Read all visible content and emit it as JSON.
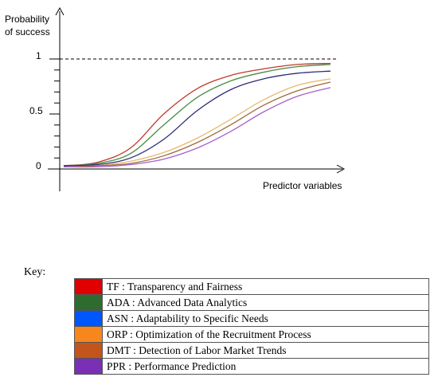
{
  "chart_data": {
    "type": "line",
    "ylabel_lines": [
      "Probability",
      "of success"
    ],
    "xlabel": "Predictor variables",
    "y_ticks": [
      {
        "value": 0,
        "label": "0"
      },
      {
        "value": 0.5,
        "label": "0.5"
      },
      {
        "value": 1,
        "label": "1"
      }
    ],
    "ylim": [
      0,
      1
    ],
    "reference_line": {
      "y": 1,
      "style": "dashed"
    },
    "series": [
      {
        "name": "TF",
        "color": "#c0392b",
        "x": [
          0,
          0.5,
          1.0,
          1.5,
          2.0,
          2.5,
          3.0,
          3.5,
          4.0
        ],
        "y": [
          0.03,
          0.06,
          0.19,
          0.5,
          0.73,
          0.85,
          0.91,
          0.95,
          0.96
        ]
      },
      {
        "name": "ADA",
        "color": "#4a8a45",
        "x": [
          0,
          0.5,
          1.0,
          1.5,
          2.0,
          2.5,
          3.0,
          3.5,
          4.0
        ],
        "y": [
          0.03,
          0.05,
          0.14,
          0.4,
          0.65,
          0.8,
          0.88,
          0.93,
          0.95
        ]
      },
      {
        "name": "ASN",
        "color": "#2c2c7a",
        "x": [
          0,
          0.5,
          1.0,
          1.5,
          2.0,
          2.5,
          3.0,
          3.5,
          4.0
        ],
        "y": [
          0.03,
          0.04,
          0.1,
          0.27,
          0.53,
          0.72,
          0.82,
          0.87,
          0.89
        ]
      },
      {
        "name": "ORP",
        "color": "#e9b96e",
        "x": [
          0,
          0.5,
          1.0,
          1.5,
          2.0,
          2.5,
          3.0,
          3.5,
          4.0
        ],
        "y": [
          0.02,
          0.03,
          0.07,
          0.15,
          0.28,
          0.45,
          0.63,
          0.76,
          0.82
        ]
      },
      {
        "name": "DMT",
        "color": "#9c6b3c",
        "x": [
          0,
          0.5,
          1.0,
          1.5,
          2.0,
          2.5,
          3.0,
          3.5,
          4.0
        ],
        "y": [
          0.02,
          0.03,
          0.05,
          0.12,
          0.24,
          0.4,
          0.58,
          0.71,
          0.79
        ]
      },
      {
        "name": "PPR",
        "color": "#a65fd0",
        "x": [
          0,
          0.5,
          1.0,
          1.5,
          2.0,
          2.5,
          3.0,
          3.5,
          4.0
        ],
        "y": [
          0.02,
          0.02,
          0.04,
          0.09,
          0.19,
          0.34,
          0.52,
          0.66,
          0.74
        ]
      }
    ]
  },
  "key": {
    "title": "Key:",
    "items": [
      {
        "color": "#e00000",
        "label": "TF : Transparency and Fairness"
      },
      {
        "color": "#2f6b2f",
        "label": "ADA : Advanced Data Analytics"
      },
      {
        "color": "#0057ff",
        "label": "ASN : Adaptability to Specific Needs"
      },
      {
        "color": "#f7861d",
        "label": "ORP : Optimization of the Recruitment Process"
      },
      {
        "color": "#c1551c",
        "label": "DMT : Detection of Labor Market Trends"
      },
      {
        "color": "#7b2fb5",
        "label": "PPR : Performance Prediction"
      }
    ]
  }
}
